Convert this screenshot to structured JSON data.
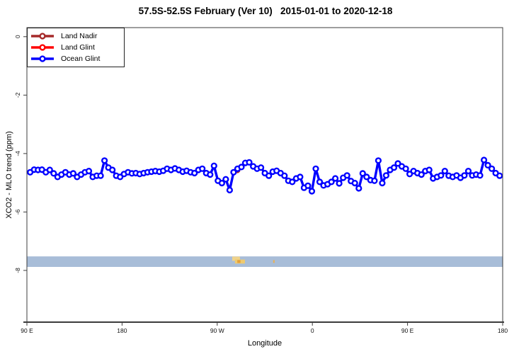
{
  "window": {
    "title": "57.5S-52.5S February (Ver 10)   2015-01-01 to 2020-12-18"
  },
  "legend": {
    "items": [
      {
        "label": "Land Nadir",
        "color": "#a52a2a"
      },
      {
        "label": "Land Glint",
        "color": "#ff0000"
      },
      {
        "label": "Ocean Glint",
        "color": "#0000ff"
      }
    ]
  },
  "chart_data": {
    "type": "line",
    "title": "57.5S-52.5S February (Ver 10)   2015-01-01 to 2020-12-18",
    "xlabel": "Longitude",
    "ylabel": "XCO2 - MLO trend (ppm)",
    "x_axis": {
      "range_deg": [
        90,
        540
      ],
      "ticks_deg": [
        90,
        180,
        270,
        360,
        450,
        540
      ],
      "tick_labels": [
        "90 E",
        "180",
        "90 W",
        "0",
        "90 E",
        "180"
      ]
    },
    "y_axis": {
      "range": [
        -9.77,
        0.31
      ],
      "ticks": [
        0,
        -2,
        -4,
        -6,
        -8
      ],
      "tick_labels": [
        "0",
        "-2",
        "-4",
        "-6",
        "-8"
      ]
    },
    "grid": false,
    "legend_position": "topleft",
    "series": [
      {
        "name": "Land Nadir",
        "color": "#a52a2a",
        "x_deg": [
          288.9
        ],
        "values": [
          -4.56
        ]
      },
      {
        "name": "Land Glint",
        "color": "#ff0000",
        "x_deg": [],
        "values": []
      },
      {
        "name": "Ocean Glint",
        "color": "#0000ff",
        "x_start_deg": 93.1,
        "x_step_deg": 3.7,
        "values": [
          -4.64,
          -4.55,
          -4.56,
          -4.55,
          -4.64,
          -4.56,
          -4.68,
          -4.8,
          -4.72,
          -4.64,
          -4.72,
          -4.68,
          -4.8,
          -4.72,
          -4.64,
          -4.6,
          -4.8,
          -4.76,
          -4.76,
          -4.24,
          -4.48,
          -4.56,
          -4.76,
          -4.8,
          -4.7,
          -4.64,
          -4.68,
          -4.67,
          -4.7,
          -4.67,
          -4.64,
          -4.62,
          -4.6,
          -4.62,
          -4.59,
          -4.52,
          -4.56,
          -4.51,
          -4.56,
          -4.62,
          -4.59,
          -4.64,
          -4.67,
          -4.56,
          -4.52,
          -4.67,
          -4.72,
          -4.42,
          -4.93,
          -5.01,
          -4.88,
          -5.25,
          -4.64,
          -4.52,
          -4.46,
          -4.32,
          -4.3,
          -4.44,
          -4.52,
          -4.48,
          -4.67,
          -4.76,
          -4.62,
          -4.59,
          -4.67,
          -4.76,
          -4.93,
          -4.97,
          -4.85,
          -4.8,
          -5.17,
          -5.1,
          -5.29,
          -4.52,
          -4.97,
          -5.09,
          -5.05,
          -4.97,
          -4.85,
          -5.02,
          -4.83,
          -4.75,
          -4.94,
          -5.01,
          -5.19,
          -4.68,
          -4.8,
          -4.91,
          -4.93,
          -4.24,
          -5.01,
          -4.75,
          -4.56,
          -4.48,
          -4.34,
          -4.44,
          -4.52,
          -4.7,
          -4.6,
          -4.67,
          -4.72,
          -4.6,
          -4.56,
          -4.85,
          -4.8,
          -4.75,
          -4.6,
          -4.76,
          -4.8,
          -4.75,
          -4.83,
          -4.75,
          -4.6,
          -4.75,
          -4.72,
          -4.75,
          -4.22,
          -4.4,
          -4.52,
          -4.67,
          -4.76
        ]
      }
    ],
    "map_strip": {
      "value_top": -7.52,
      "value_bottom": -7.88,
      "ocean_color": "#a8bdd8",
      "land_marks": [
        {
          "lon0": 284.2,
          "lon1": 291.5,
          "top_frac": 0.02,
          "bot_frac": 0.42,
          "color": "#f0d38a"
        },
        {
          "lon0": 286.8,
          "lon1": 296.2,
          "top_frac": 0.3,
          "bot_frac": 0.68,
          "color": "#eeca6f"
        },
        {
          "lon0": 289.0,
          "lon1": 292.0,
          "top_frac": 0.35,
          "bot_frac": 0.62,
          "color": "#e39f3a"
        },
        {
          "lon0": 322.9,
          "lon1": 324.3,
          "top_frac": 0.35,
          "bot_frac": 0.62,
          "color": "#e8b057"
        }
      ]
    }
  }
}
